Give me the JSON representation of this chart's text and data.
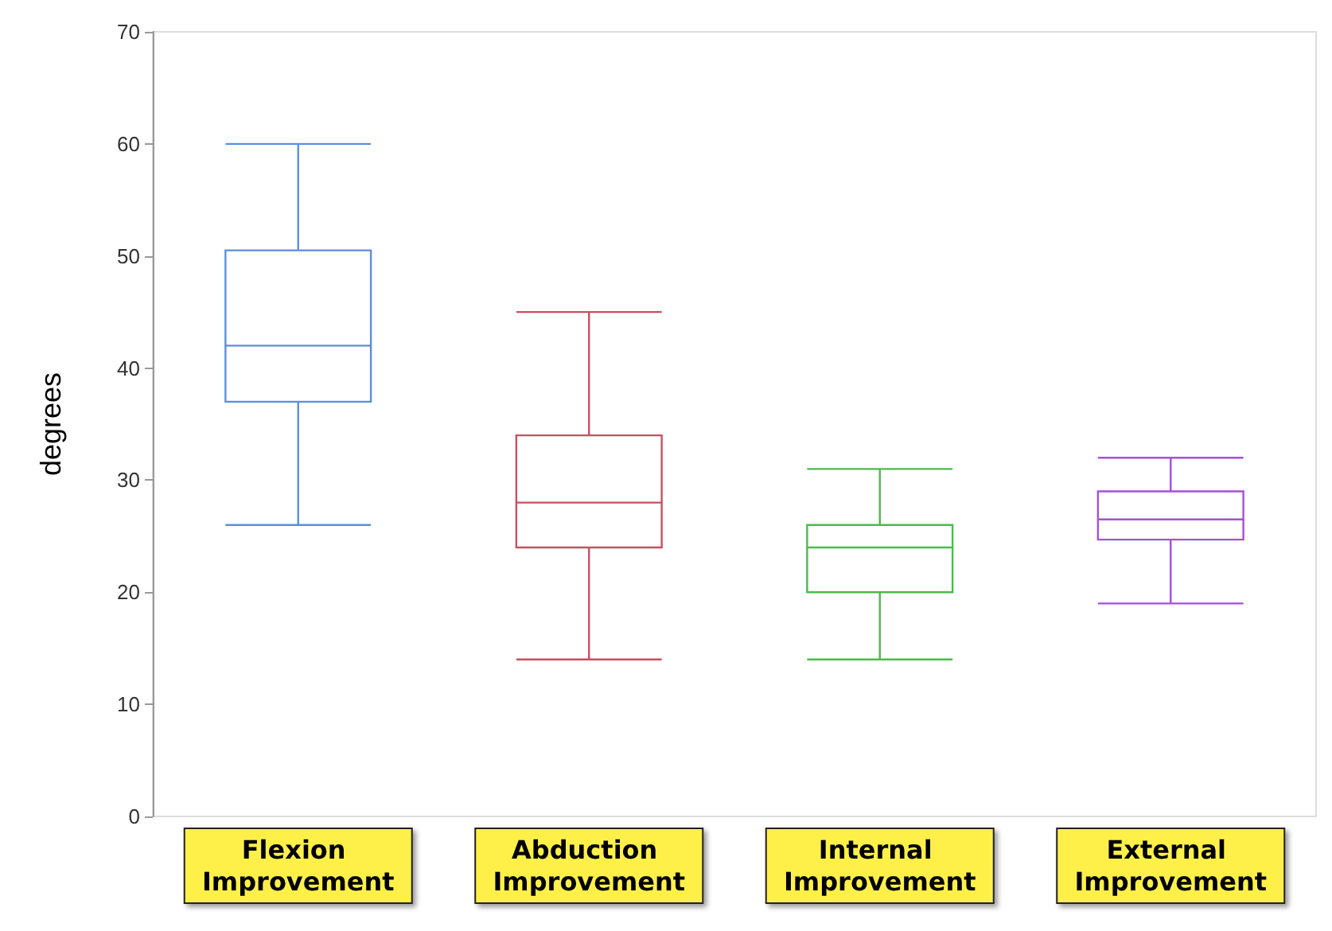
{
  "chart_data": {
    "type": "box",
    "ylabel": "degrees",
    "categories": [
      "Flexion Improvement",
      "Abduction Improvement",
      "Internal Improvement",
      "External Improvement"
    ],
    "colors": [
      "#5b8fd9",
      "#c8505f",
      "#4cbb4c",
      "#a64fd9"
    ],
    "boxes": [
      {
        "low": 26,
        "q1": 37,
        "median": 42,
        "q3": 50.5,
        "high": 60
      },
      {
        "low": 14,
        "q1": 24,
        "median": 28,
        "q3": 34,
        "high": 45
      },
      {
        "low": 14,
        "q1": 20,
        "median": 24,
        "q3": 26,
        "high": 31
      },
      {
        "low": 19,
        "q1": 24.7,
        "median": 26.5,
        "q3": 29,
        "high": 32
      }
    ],
    "ylim": [
      0,
      70
    ],
    "yticks": [
      0,
      10,
      20,
      30,
      40,
      50,
      60,
      70
    ]
  }
}
